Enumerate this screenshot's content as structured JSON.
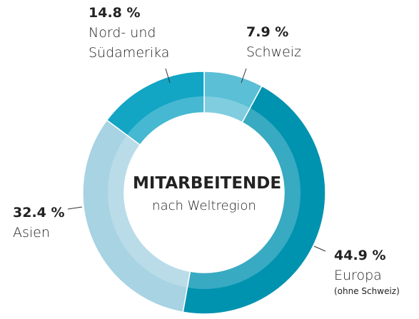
{
  "chart_data": {
    "type": "donut",
    "title": "MITARBEITENDE",
    "subtitle": "nach Weltregion",
    "categories": [
      "Schweiz",
      "Europa",
      "Asien",
      "Nord- und\nSüdamerika"
    ],
    "values": [
      7.9,
      44.9,
      32.4,
      14.8
    ],
    "value_labels": [
      "7.9 %",
      "44.9 %",
      "32.4 %",
      "14.8 %"
    ],
    "colors": [
      "#5bbfd6",
      "#0093b0",
      "#a7d3e3",
      "#12a5c4"
    ],
    "note": "(ohne Schweiz)"
  }
}
